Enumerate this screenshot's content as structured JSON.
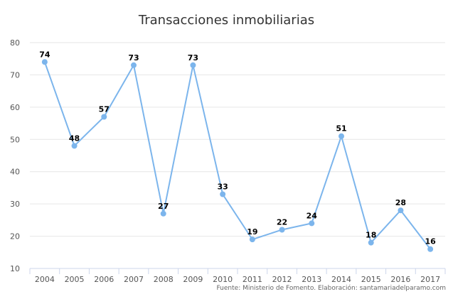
{
  "chart_data": {
    "type": "line",
    "title": "Transacciones inmobiliarias",
    "xlabel": "",
    "ylabel": "",
    "categories": [
      "2004",
      "2005",
      "2006",
      "2007",
      "2008",
      "2009",
      "2010",
      "2011",
      "2012",
      "2013",
      "2014",
      "2015",
      "2016",
      "2017"
    ],
    "series": [
      {
        "values": [
          74,
          48,
          57,
          73,
          27,
          73,
          33,
          19,
          22,
          24,
          51,
          18,
          28,
          16
        ]
      }
    ],
    "ylim": [
      10,
      80
    ],
    "yticks": [
      10,
      20,
      30,
      40,
      50,
      60,
      70,
      80
    ],
    "grid": true,
    "line_color": "#7cb5ec",
    "data_labels": true,
    "credit": "Fuente: Ministerio de Fomento. Elaboración: santamariadelparamo.com"
  }
}
